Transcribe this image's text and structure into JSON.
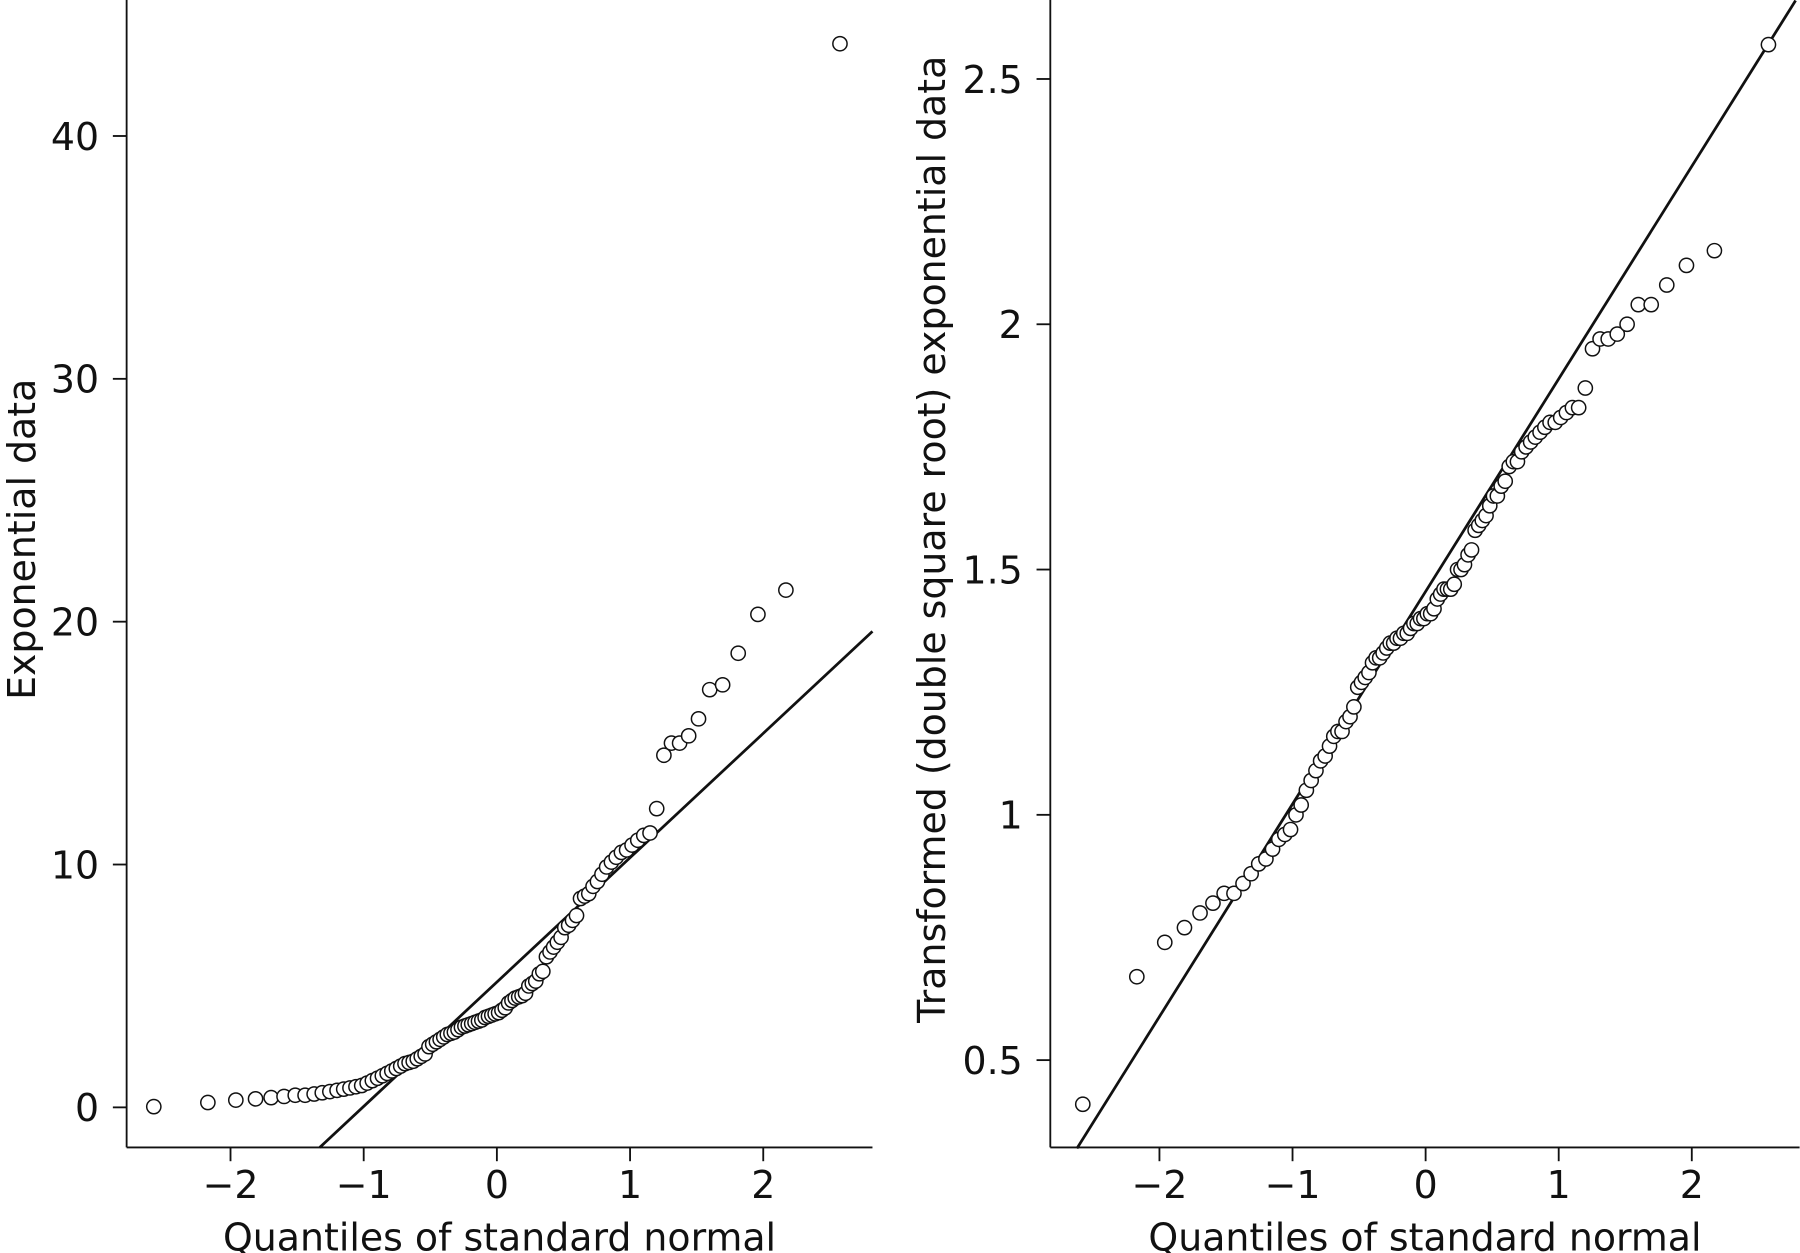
{
  "chart_data": [
    {
      "type": "scatter",
      "xlabel": "Quantiles of standard normal",
      "ylabel": "Exponential data",
      "x": [
        -2.576,
        -2.17,
        -1.96,
        -1.812,
        -1.695,
        -1.598,
        -1.514,
        -1.44,
        -1.372,
        -1.311,
        -1.254,
        -1.2,
        -1.15,
        -1.103,
        -1.058,
        -1.015,
        -0.974,
        -0.935,
        -0.896,
        -0.86,
        -0.824,
        -0.789,
        -0.755,
        -0.722,
        -0.69,
        -0.659,
        -0.628,
        -0.598,
        -0.568,
        -0.539,
        -0.51,
        -0.482,
        -0.454,
        -0.426,
        -0.399,
        -0.372,
        -0.345,
        -0.319,
        -0.292,
        -0.266,
        -0.24,
        -0.215,
        -0.189,
        -0.164,
        -0.138,
        -0.113,
        -0.088,
        -0.063,
        -0.038,
        -0.013,
        0.013,
        0.038,
        0.063,
        0.088,
        0.113,
        0.138,
        0.164,
        0.189,
        0.215,
        0.24,
        0.266,
        0.292,
        0.319,
        0.345,
        0.372,
        0.399,
        0.426,
        0.454,
        0.482,
        0.51,
        0.539,
        0.568,
        0.598,
        0.628,
        0.659,
        0.69,
        0.722,
        0.755,
        0.789,
        0.824,
        0.86,
        0.896,
        0.935,
        0.974,
        1.015,
        1.058,
        1.103,
        1.15,
        1.2,
        1.254,
        1.311,
        1.372,
        1.44,
        1.514,
        1.598,
        1.695,
        1.812,
        1.96,
        2.17,
        2.576
      ],
      "values": [
        0.03,
        0.2,
        0.3,
        0.35,
        0.4,
        0.45,
        0.5,
        0.5,
        0.55,
        0.6,
        0.65,
        0.7,
        0.75,
        0.8,
        0.85,
        0.9,
        1.0,
        1.1,
        1.2,
        1.3,
        1.4,
        1.5,
        1.6,
        1.7,
        1.8,
        1.85,
        1.9,
        2.0,
        2.1,
        2.2,
        2.5,
        2.6,
        2.7,
        2.8,
        2.9,
        3.0,
        3.05,
        3.1,
        3.2,
        3.3,
        3.35,
        3.4,
        3.45,
        3.5,
        3.55,
        3.6,
        3.7,
        3.75,
        3.8,
        3.85,
        3.9,
        4.0,
        4.1,
        4.3,
        4.4,
        4.5,
        4.55,
        4.6,
        4.7,
        5.0,
        5.1,
        5.2,
        5.5,
        5.6,
        6.2,
        6.4,
        6.6,
        6.8,
        7.0,
        7.4,
        7.5,
        7.7,
        7.9,
        8.6,
        8.7,
        8.8,
        9.1,
        9.3,
        9.6,
        9.9,
        10.1,
        10.3,
        10.5,
        10.6,
        10.8,
        11.0,
        11.2,
        11.3,
        12.3,
        14.5,
        15.0,
        15.0,
        15.3,
        16.0,
        17.2,
        17.4,
        18.7,
        20.3,
        21.3,
        43.8
      ],
      "line": {
        "x": [
          -1.33,
          2.82
        ],
        "y": [
          -1.65,
          19.6
        ]
      },
      "xlim": [
        -2.78,
        2.82
      ],
      "ylim": [
        -1.65,
        45.6
      ],
      "xticks": [
        {
          "value": -2,
          "label": "−2"
        },
        {
          "value": -1,
          "label": "−1"
        },
        0,
        1,
        2
      ],
      "yticks": [
        0,
        10,
        20,
        30,
        40
      ]
    },
    {
      "type": "scatter",
      "xlabel": "Quantiles of standard normal",
      "ylabel": "Transformed (double square root) exponential data",
      "x": [
        -2.576,
        -2.17,
        -1.96,
        -1.812,
        -1.695,
        -1.598,
        -1.514,
        -1.44,
        -1.372,
        -1.311,
        -1.254,
        -1.2,
        -1.15,
        -1.103,
        -1.058,
        -1.015,
        -0.974,
        -0.935,
        -0.896,
        -0.86,
        -0.824,
        -0.789,
        -0.755,
        -0.722,
        -0.69,
        -0.659,
        -0.628,
        -0.598,
        -0.568,
        -0.539,
        -0.51,
        -0.482,
        -0.454,
        -0.426,
        -0.399,
        -0.372,
        -0.345,
        -0.319,
        -0.292,
        -0.266,
        -0.24,
        -0.215,
        -0.189,
        -0.164,
        -0.138,
        -0.113,
        -0.088,
        -0.063,
        -0.038,
        -0.013,
        0.013,
        0.038,
        0.063,
        0.088,
        0.113,
        0.138,
        0.164,
        0.189,
        0.215,
        0.24,
        0.266,
        0.292,
        0.319,
        0.345,
        0.372,
        0.399,
        0.426,
        0.454,
        0.482,
        0.51,
        0.539,
        0.568,
        0.598,
        0.628,
        0.659,
        0.69,
        0.722,
        0.755,
        0.789,
        0.824,
        0.86,
        0.896,
        0.935,
        0.974,
        1.015,
        1.058,
        1.103,
        1.15,
        1.2,
        1.254,
        1.311,
        1.372,
        1.44,
        1.514,
        1.598,
        1.695,
        1.812,
        1.96,
        2.17,
        2.576
      ],
      "values": [
        0.41,
        0.67,
        0.74,
        0.77,
        0.8,
        0.82,
        0.84,
        0.84,
        0.86,
        0.88,
        0.9,
        0.91,
        0.93,
        0.95,
        0.96,
        0.97,
        1.0,
        1.02,
        1.05,
        1.07,
        1.09,
        1.11,
        1.12,
        1.14,
        1.16,
        1.17,
        1.17,
        1.19,
        1.2,
        1.22,
        1.26,
        1.27,
        1.28,
        1.29,
        1.31,
        1.32,
        1.32,
        1.33,
        1.34,
        1.35,
        1.35,
        1.36,
        1.36,
        1.37,
        1.37,
        1.38,
        1.39,
        1.39,
        1.4,
        1.4,
        1.41,
        1.41,
        1.42,
        1.44,
        1.45,
        1.46,
        1.46,
        1.46,
        1.47,
        1.5,
        1.5,
        1.51,
        1.53,
        1.54,
        1.58,
        1.59,
        1.6,
        1.61,
        1.63,
        1.65,
        1.65,
        1.67,
        1.68,
        1.71,
        1.72,
        1.72,
        1.74,
        1.75,
        1.76,
        1.77,
        1.78,
        1.79,
        1.8,
        1.8,
        1.81,
        1.82,
        1.83,
        1.83,
        1.87,
        1.95,
        1.97,
        1.97,
        1.98,
        2.0,
        2.04,
        2.04,
        2.08,
        2.12,
        2.15,
        2.57
      ],
      "line": {
        "x": [
          -2.62,
          2.78
        ],
        "y": [
          0.32,
          2.66
        ]
      },
      "xlim": [
        -2.82,
        2.81
      ],
      "ylim": [
        0.322,
        2.661
      ],
      "xticks": [
        {
          "value": -2,
          "label": "−2"
        },
        {
          "value": -1,
          "label": "−1"
        },
        0,
        1,
        2
      ],
      "yticks": [
        0.5,
        1.0,
        1.5,
        2.0,
        2.5
      ]
    }
  ]
}
